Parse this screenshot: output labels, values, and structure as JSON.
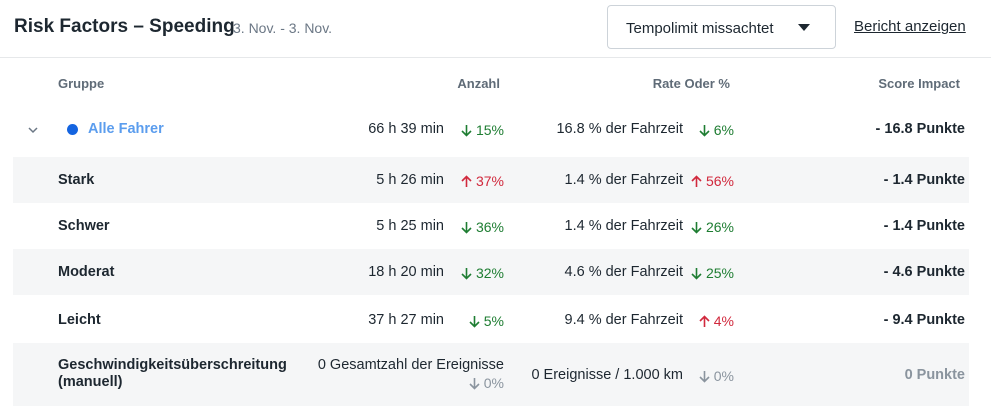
{
  "header": {
    "title": "Risk Factors – Speeding",
    "date_range": "3. Nov. - 3. Nov.",
    "select_value": "Tempolimit missachtet",
    "report_link": "Bericht anzeigen"
  },
  "columns": {
    "group": "Gruppe",
    "count": "Anzahl",
    "rate": "Rate Oder %",
    "score": "Score Impact"
  },
  "colors": {
    "down": "#1e7d32",
    "up": "#d1293d",
    "neutral": "#8a949e",
    "accent": "#1464e0"
  },
  "rows": [
    {
      "name": "Alle Fahrer",
      "count": "66 h 39 min",
      "count_change": "15%",
      "count_dir": "down",
      "rate": "16.8 % der Fahrzeit",
      "rate_change": "6%",
      "rate_dir": "down",
      "score": "- 16.8 Punkte"
    },
    {
      "name": "Stark",
      "count": "5 h 26 min",
      "count_change": "37%",
      "count_dir": "up",
      "rate": "1.4 % der Fahrzeit",
      "rate_change": "56%",
      "rate_dir": "up",
      "score": "- 1.4 Punkte"
    },
    {
      "name": "Schwer",
      "count": "5 h 25 min",
      "count_change": "36%",
      "count_dir": "down",
      "rate": "1.4 % der Fahrzeit",
      "rate_change": "26%",
      "rate_dir": "down",
      "score": "- 1.4 Punkte"
    },
    {
      "name": "Moderat",
      "count": "18 h 20 min",
      "count_change": "32%",
      "count_dir": "down",
      "rate": "4.6 % der Fahrzeit",
      "rate_change": "25%",
      "rate_dir": "down",
      "score": "- 4.6 Punkte"
    },
    {
      "name": "Leicht",
      "count": "37 h 27 min",
      "count_change": "5%",
      "count_dir": "down",
      "rate": "9.4 % der Fahrzeit",
      "rate_change": "4%",
      "rate_dir": "up",
      "score": "- 9.4 Punkte"
    },
    {
      "name_line1": "Geschwindigkeitsüberschreitung",
      "name_line2": "(manuell)",
      "count": "0 Gesamtzahl der Ereignisse",
      "count_change": "0%",
      "count_dir": "neutral",
      "rate": "0 Ereignisse / 1.000 km",
      "rate_change": "0%",
      "rate_dir": "neutral",
      "score": "0 Punkte"
    }
  ]
}
